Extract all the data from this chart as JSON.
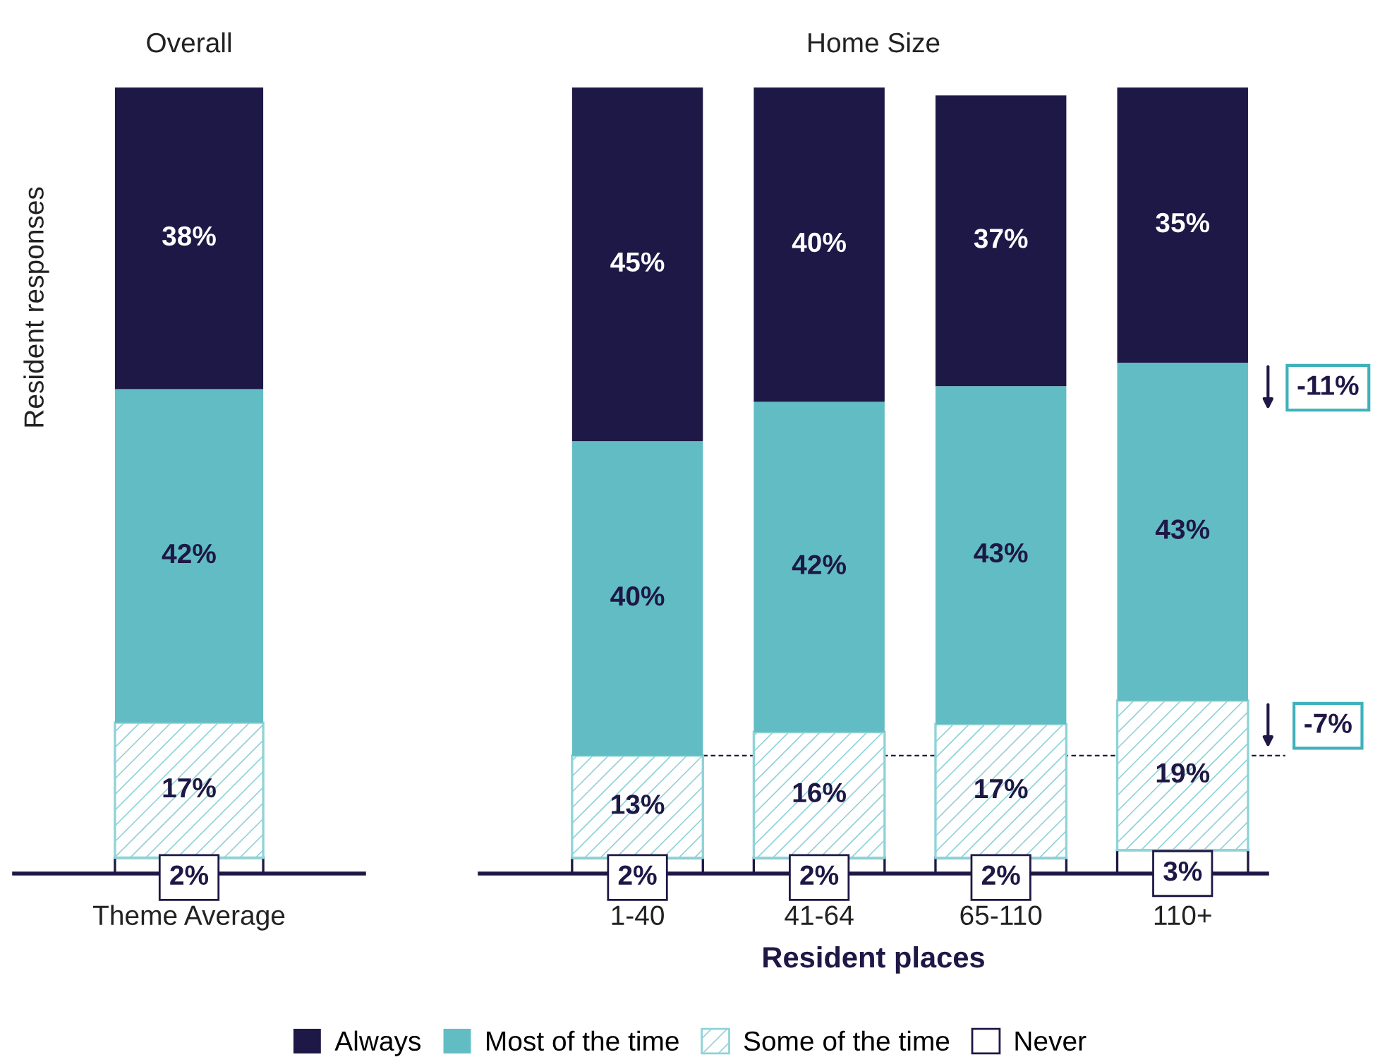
{
  "chart_data": [
    {
      "type": "bar",
      "stacked": true,
      "title": "Overall",
      "ylabel": "Resident responses",
      "categories": [
        "Theme Average"
      ],
      "tick_labels": "x",
      "legend": false,
      "grid": false,
      "series": [
        {
          "color": "#ffffff",
          "values": [
            2
          ],
          "value_labels": [
            "2%"
          ]
        },
        {
          "color": "#8fd3d8",
          "values": [
            17
          ],
          "value_labels": [
            "17%"
          ]
        },
        {
          "color": "#62bcc4",
          "values": [
            42
          ],
          "value_labels": [
            "42%"
          ]
        },
        {
          "color": "#1e1846",
          "values": [
            38
          ],
          "value_labels": [
            "38%"
          ]
        }
      ]
    },
    {
      "type": "bar",
      "stacked": true,
      "title": "Home Size",
      "xlabel": "Resident places",
      "categories": [
        "1-40",
        "41-64",
        "65-110",
        "110+"
      ],
      "tick_labels": "x",
      "legend": "bottom",
      "grid": false,
      "series": [
        {
          "name": "Never",
          "color": "#ffffff",
          "values": [
            2,
            2,
            2,
            3
          ],
          "value_labels": [
            "2%",
            "2%",
            "2%",
            "3%"
          ]
        },
        {
          "name": "Some of the time",
          "color": "#8fd3d8",
          "values": [
            13,
            16,
            17,
            19
          ],
          "value_labels": [
            "13%",
            "16%",
            "17%",
            "19%"
          ]
        },
        {
          "name": "Most of the time",
          "color": "#62bcc4",
          "values": [
            40,
            42,
            43,
            43
          ],
          "value_labels": [
            "40%",
            "42%",
            "43%",
            "43%"
          ]
        },
        {
          "name": "Always",
          "color": "#1e1846",
          "values": [
            45,
            40,
            37,
            35
          ],
          "value_labels": [
            "45%",
            "40%",
            "37%",
            "35%"
          ]
        }
      ],
      "ref_lines": [
        {
          "axis": "y",
          "value": 15,
          "line_style": "dashed",
          "color": "#1e1846"
        }
      ],
      "annotations": [
        "-11%",
        "-7%"
      ]
    }
  ]
}
